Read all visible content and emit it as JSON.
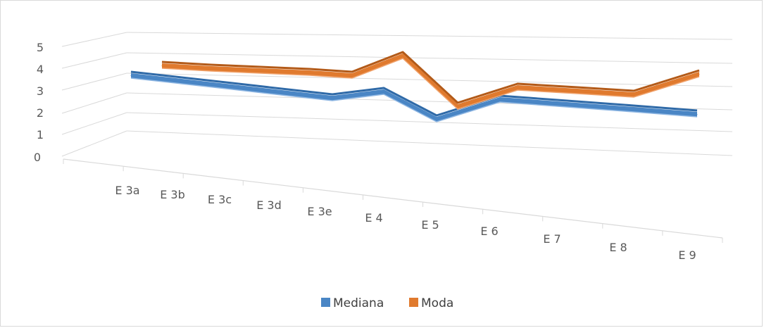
{
  "chart_data": {
    "type": "line",
    "title": "",
    "xlabel": "",
    "ylabel": "",
    "categories": [
      "E 3a",
      "E 3b",
      "E 3c",
      "E 3d",
      "E 3e",
      "E 4",
      "E 5",
      "E 6",
      "E 7",
      "E 8",
      "E 9"
    ],
    "y_ticks": [
      "0",
      "1",
      "2",
      "3",
      "4",
      "5"
    ],
    "ylim": [
      0,
      5
    ],
    "grid": true,
    "perspective": "3d-line",
    "legend_position": "bottom",
    "series": [
      {
        "name": "Mediana",
        "color": "#4a86c5",
        "values": [
          4,
          4,
          4,
          4,
          4,
          4,
          3,
          4,
          4,
          4,
          4
        ]
      },
      {
        "name": "Moda",
        "color": "#e07a2e",
        "values": [
          4,
          4,
          4,
          4,
          4,
          5,
          3,
          4,
          4,
          4,
          5
        ]
      }
    ]
  }
}
